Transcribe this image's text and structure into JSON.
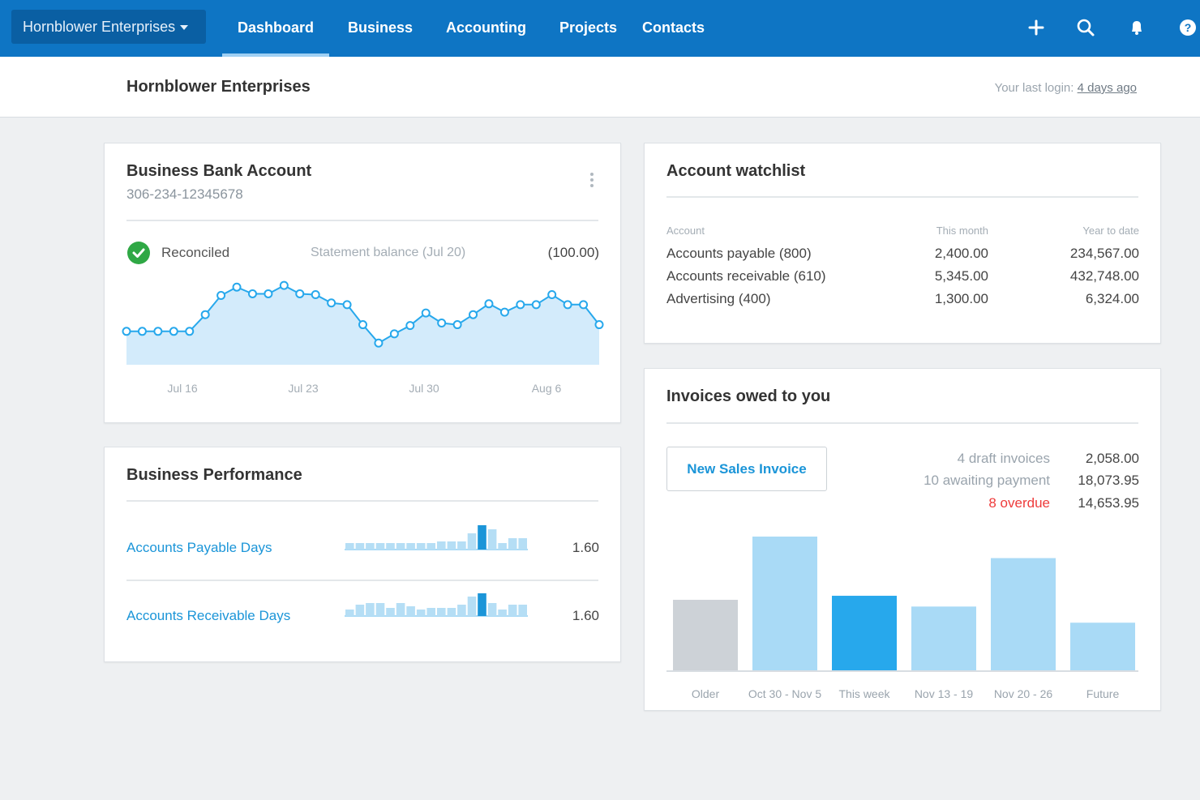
{
  "nav": {
    "org_name": "Hornblower Enterprises",
    "tabs": [
      {
        "label": "Dashboard",
        "active": true
      },
      {
        "label": "Business",
        "active": false
      },
      {
        "label": "Accounting",
        "active": false
      },
      {
        "label": "Projects",
        "active": false
      },
      {
        "label": "Contacts",
        "active": false
      }
    ],
    "icons": [
      "plus-icon",
      "search-icon",
      "bell-icon",
      "help-icon"
    ]
  },
  "header": {
    "title": "Hornblower Enterprises",
    "last_login_label": "Your last login:",
    "last_login_link": "4 days ago"
  },
  "bank": {
    "title": "Business Bank Account",
    "account_number": "306-234-12345678",
    "reconciled": "Reconciled",
    "statement_label": "Statement balance (Jul 20)",
    "statement_value": "(100.00)",
    "chart_data": {
      "type": "area",
      "x_labels": [
        "Jul 16",
        "Jul 23",
        "Jul 30",
        "Aug 6"
      ],
      "values": [
        40,
        40,
        40,
        40,
        40,
        60,
        83,
        93,
        85,
        85,
        95,
        85,
        84,
        74,
        72,
        48,
        26,
        37,
        47,
        62,
        50,
        48,
        60,
        73,
        63,
        72,
        72,
        84,
        72,
        72,
        48
      ]
    }
  },
  "performance": {
    "title": "Business Performance",
    "rows": [
      {
        "label": "Accounts Payable Days",
        "value": "1.60",
        "bars": [
          8,
          8,
          8,
          8,
          8,
          8,
          8,
          8,
          8,
          10,
          10,
          10,
          20,
          30,
          25,
          8,
          14,
          14
        ]
      },
      {
        "label": "Accounts Receivable Days",
        "value": "1.60",
        "bars": [
          8,
          14,
          16,
          16,
          10,
          16,
          12,
          8,
          10,
          10,
          10,
          14,
          24,
          28,
          16,
          8,
          14,
          14
        ]
      }
    ]
  },
  "watchlist": {
    "title": "Account watchlist",
    "headers": {
      "account": "Account",
      "month": "This month",
      "ytd": "Year to date"
    },
    "rows": [
      {
        "account": "Accounts payable (800)",
        "month": "2,400.00",
        "ytd": "234,567.00"
      },
      {
        "account": "Accounts receivable (610)",
        "month": "5,345.00",
        "ytd": "432,748.00"
      },
      {
        "account": "Advertising (400)",
        "month": "1,300.00",
        "ytd": "6,324.00"
      }
    ]
  },
  "invoices": {
    "title": "Invoices owed to you",
    "new_button": "New Sales Invoice",
    "summary": [
      {
        "label": "4 draft invoices",
        "value": "2,058.00",
        "overdue": false
      },
      {
        "label": "10 awaiting payment",
        "value": "18,073.95",
        "overdue": false
      },
      {
        "label": "8 overdue",
        "value": "14,653.95",
        "overdue": true
      }
    ],
    "chart_data": {
      "type": "bar",
      "categories": [
        "Older",
        "Oct 30 - Nov 5",
        "This week",
        "Nov 13 - 19",
        "Nov 20 - 26",
        "Future"
      ],
      "values": [
        53,
        100,
        56,
        48,
        84,
        36
      ],
      "colors": [
        "#cdd2d7",
        "#a9daf6",
        "#27a8ec",
        "#a9daf6",
        "#a9daf6",
        "#a9daf6"
      ]
    }
  },
  "colors": {
    "nav": "#0e75c4",
    "accent": "#1b95d8",
    "overdue": "#ee3b3b",
    "reconciled": "#2fa845"
  }
}
